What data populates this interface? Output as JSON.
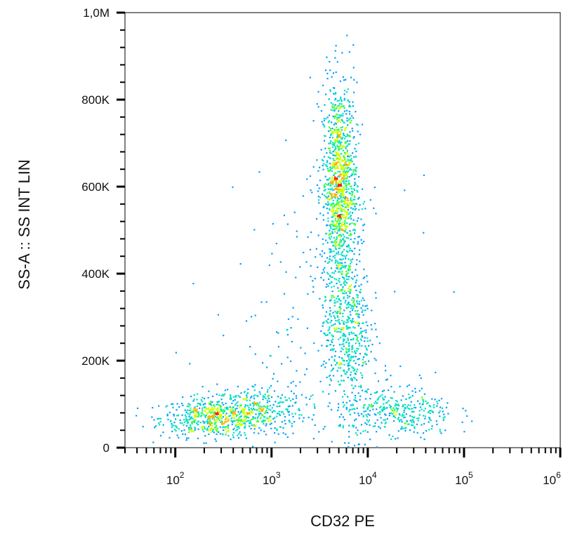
{
  "chart_data": {
    "type": "scatter",
    "title": "",
    "xlabel": "CD32 PE",
    "ylabel": "SS-A :: SS INT LIN",
    "x_scale": "log",
    "xlim": [
      30,
      1000000
    ],
    "ylim": [
      0,
      1000000
    ],
    "x_ticks": [
      {
        "value": 100,
        "base": "10",
        "exp": "2"
      },
      {
        "value": 1000,
        "base": "10",
        "exp": "3"
      },
      {
        "value": 10000,
        "base": "10",
        "exp": "4"
      },
      {
        "value": 100000,
        "base": "10",
        "exp": "5"
      },
      {
        "value": 1000000,
        "base": "10",
        "exp": "6"
      }
    ],
    "y_ticks": [
      {
        "value": 0,
        "label": "0"
      },
      {
        "value": 200000,
        "label": "200K"
      },
      {
        "value": 400000,
        "label": "400K"
      },
      {
        "value": 600000,
        "label": "600K"
      },
      {
        "value": 800000,
        "label": "800K"
      },
      {
        "value": 1000000,
        "label": "1,0M"
      }
    ],
    "grid": false,
    "legend": "none",
    "colormap": [
      "#1a1aff",
      "#00a0ff",
      "#00e0c0",
      "#40ff40",
      "#d0ff00",
      "#ffb000",
      "#ff2000"
    ],
    "populations": [
      {
        "x_center": 250,
        "y_center": 70000,
        "x_spread_log": 0.28,
        "y_spread": 22000,
        "density": 0.16
      },
      {
        "x_center": 700,
        "y_center": 90000,
        "x_spread_log": 0.25,
        "y_spread": 30000,
        "density": 0.08
      },
      {
        "x_center": 5000,
        "y_center": 600000,
        "x_spread_log": 0.09,
        "y_spread": 120000,
        "density": 0.34
      },
      {
        "x_center": 6000,
        "y_center": 280000,
        "x_spread_log": 0.12,
        "y_spread": 90000,
        "density": 0.14
      },
      {
        "x_center": 20000,
        "y_center": 80000,
        "x_spread_log": 0.3,
        "y_spread": 30000,
        "density": 0.1
      },
      {
        "x_center": 2500,
        "y_center": 250000,
        "x_spread_log": 0.5,
        "y_spread": 180000,
        "density": 0.06
      }
    ]
  }
}
